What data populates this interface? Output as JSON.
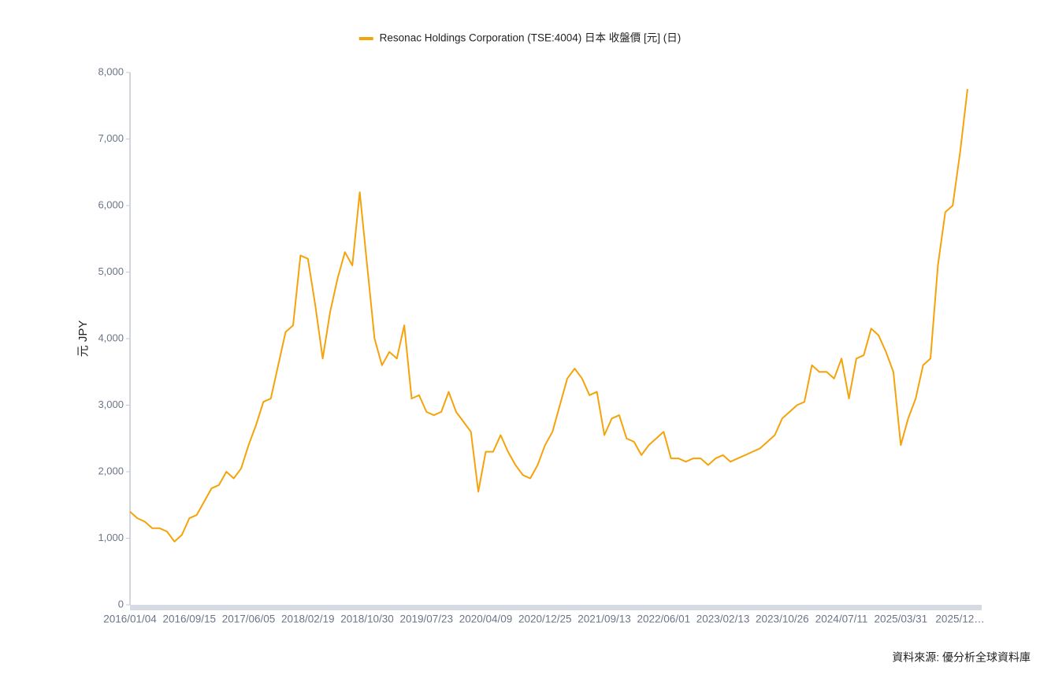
{
  "chart_data": {
    "type": "line",
    "legend_position": "top",
    "ylabel": "元 JPY",
    "source": "資料來源: 優分析全球資料庫",
    "x": [
      "2016/01/04",
      "2016/02/05",
      "2016/03/08",
      "2016/04/08",
      "2016/05/11",
      "2016/06/13",
      "2016/07/14",
      "2016/08/15",
      "2016/09/15",
      "2016/10/18",
      "2016/11/18",
      "2016/12/21",
      "2017/01/23",
      "2017/02/24",
      "2017/03/29",
      "2017/05/01",
      "2017/06/05",
      "2017/07/07",
      "2017/08/08",
      "2017/09/08",
      "2017/10/11",
      "2017/11/13",
      "2017/12/15",
      "2018/01/17",
      "2018/02/19",
      "2018/03/23",
      "2018/04/24",
      "2018/05/25",
      "2018/06/26",
      "2018/07/27",
      "2018/08/28",
      "2018/09/28",
      "2018/10/30",
      "2018/12/03",
      "2019/01/04",
      "2019/02/05",
      "2019/03/11",
      "2019/04/12",
      "2019/05/15",
      "2019/06/18",
      "2019/07/23",
      "2019/08/23",
      "2019/09/25",
      "2019/10/28",
      "2019/11/29",
      "2020/01/02",
      "2020/02/04",
      "2020/03/06",
      "2020/04/09",
      "2020/05/12",
      "2020/06/12",
      "2020/07/15",
      "2020/08/17",
      "2020/09/17",
      "2020/10/20",
      "2020/11/20",
      "2020/12/25",
      "2021/01/27",
      "2021/02/26",
      "2021/03/31",
      "2021/05/03",
      "2021/06/04",
      "2021/07/07",
      "2021/08/09",
      "2021/09/13",
      "2021/10/15",
      "2021/11/16",
      "2021/12/17",
      "2022/01/19",
      "2022/02/21",
      "2022/03/24",
      "2022/04/26",
      "2022/06/01",
      "2022/07/04",
      "2022/08/05",
      "2022/09/06",
      "2022/10/07",
      "2022/11/08",
      "2022/12/09",
      "2023/01/11",
      "2023/02/13",
      "2023/03/17",
      "2023/04/18",
      "2023/05/19",
      "2023/06/20",
      "2023/07/21",
      "2023/08/22",
      "2023/09/22",
      "2023/10/26",
      "2023/11/28",
      "2023/12/29",
      "2024/01/31",
      "2024/03/04",
      "2024/04/05",
      "2024/05/07",
      "2024/06/07",
      "2024/07/11",
      "2024/08/12",
      "2024/09/13",
      "2024/10/16",
      "2024/11/18",
      "2024/12/19",
      "2025/01/21",
      "2025/02/24",
      "2025/03/31",
      "2025/05/01",
      "2025/06/02",
      "2025/07/03",
      "2025/08/04",
      "2025/09/04",
      "2025/10/06",
      "2025/11/06",
      "2025/12/08",
      "2025/12/19"
    ],
    "series": [
      {
        "name": "Resonac Holdings Corporation (TSE:4004) 日本 收盤價 [元] (日)",
        "color": "#f5a30a",
        "values": [
          1400,
          1300,
          1250,
          1150,
          1150,
          1100,
          950,
          1050,
          1300,
          1350,
          1550,
          1750,
          1800,
          2000,
          1900,
          2050,
          2400,
          2700,
          3050,
          3100,
          3600,
          4100,
          4200,
          5250,
          5200,
          4500,
          3700,
          4400,
          4900,
          5300,
          5100,
          6200,
          5100,
          4000,
          3600,
          3800,
          3700,
          4200,
          3100,
          3150,
          2900,
          2850,
          2900,
          3200,
          2900,
          2750,
          2600,
          1700,
          2300,
          2300,
          2550,
          2300,
          2100,
          1950,
          1900,
          2100,
          2400,
          2600,
          3000,
          3400,
          3550,
          3400,
          3150,
          3200,
          2550,
          2800,
          2850,
          2500,
          2450,
          2250,
          2400,
          2500,
          2600,
          2200,
          2200,
          2150,
          2200,
          2200,
          2100,
          2200,
          2250,
          2150,
          2200,
          2250,
          2300,
          2350,
          2450,
          2550,
          2800,
          2900,
          3000,
          3050,
          3600,
          3500,
          3500,
          3400,
          3700,
          3100,
          3700,
          3750,
          4150,
          4050,
          3800,
          3500,
          2400,
          2800,
          3100,
          3600,
          3700,
          5100,
          5900,
          6000,
          6800,
          7750
        ]
      }
    ],
    "xticks": [
      "2016/01/04",
      "2016/09/15",
      "2017/06/05",
      "2018/02/19",
      "2018/10/30",
      "2019/07/23",
      "2020/04/09",
      "2020/12/25",
      "2021/09/13",
      "2022/06/01",
      "2023/02/13",
      "2023/10/26",
      "2024/07/11",
      "2025/03/31",
      "2025/12…"
    ],
    "ylim": [
      0,
      8000
    ],
    "yticks": [
      0,
      {
        "value": 1000,
        "label": "1,000"
      },
      {
        "value": 2000,
        "label": "2,000"
      },
      {
        "value": 3000,
        "label": "3,000"
      },
      {
        "value": 4000,
        "label": "4,000"
      },
      {
        "value": 5000,
        "label": "5,000"
      },
      {
        "value": 6000,
        "label": "6,000"
      },
      {
        "value": 7000,
        "label": "7,000"
      },
      {
        "value": 8000,
        "label": "8,000"
      }
    ],
    "grid": false
  }
}
